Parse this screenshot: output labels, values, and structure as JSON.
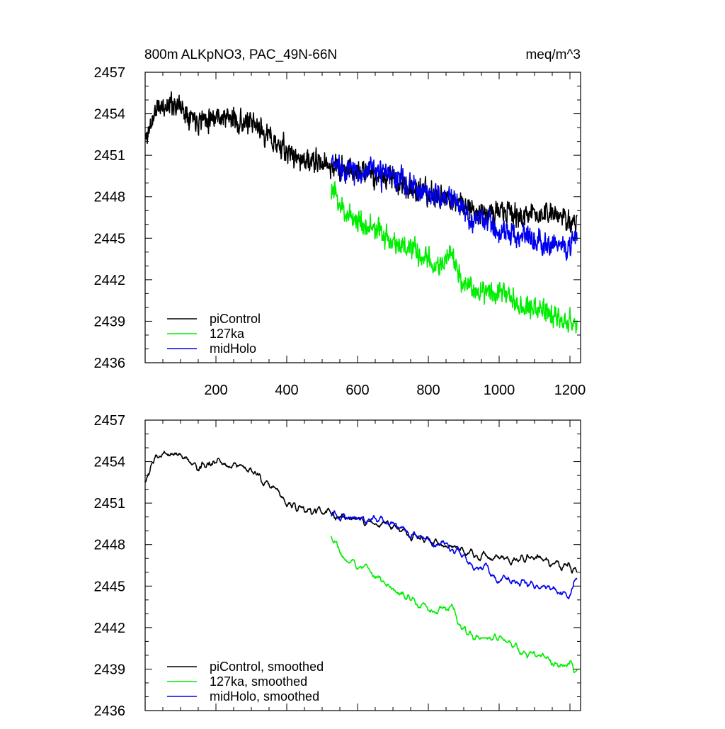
{
  "figure": {
    "title_left": "800m ALKpNO3, PAC_49N-66N",
    "title_right": "meq/m^3"
  },
  "colors": {
    "piControl": "#000000",
    "127ka": "#00ee00",
    "midHolo": "#0000ee"
  },
  "chart_data": [
    {
      "type": "line",
      "panel": "top",
      "xlim": [
        0,
        1230
      ],
      "ylim": [
        2436,
        2457
      ],
      "x_ticks": [
        200,
        400,
        600,
        800,
        1000,
        1200
      ],
      "y_ticks": [
        2436,
        2439,
        2442,
        2445,
        2448,
        2451,
        2454,
        2457
      ],
      "legend": {
        "placement": "lower-left",
        "entries": [
          "piControl",
          "127ka",
          "midHolo"
        ]
      },
      "series": [
        {
          "name": "piControl",
          "color": "#000000",
          "x_start": 1,
          "x_end": 1220,
          "trend": [
            [
              0,
              2452.0
            ],
            [
              30,
              2454.3
            ],
            [
              80,
              2454.8
            ],
            [
              150,
              2453.6
            ],
            [
              200,
              2453.9
            ],
            [
              260,
              2453.5
            ],
            [
              320,
              2453.0
            ],
            [
              400,
              2451.2
            ],
            [
              460,
              2450.5
            ],
            [
              520,
              2450.3
            ],
            [
              560,
              2450.0
            ],
            [
              600,
              2449.8
            ],
            [
              650,
              2449.6
            ],
            [
              700,
              2449.2
            ],
            [
              760,
              2448.5
            ],
            [
              820,
              2448.0
            ],
            [
              880,
              2447.7
            ],
            [
              940,
              2447.0
            ],
            [
              1000,
              2446.9
            ],
            [
              1060,
              2446.6
            ],
            [
              1100,
              2446.8
            ],
            [
              1160,
              2446.6
            ],
            [
              1220,
              2446.2
            ]
          ],
          "noise": 0.9,
          "seed": 11
        },
        {
          "name": "127ka",
          "color": "#00ee00",
          "x_start": 525,
          "x_end": 1220,
          "trend": [
            [
              525,
              2448.6
            ],
            [
              560,
              2447.0
            ],
            [
              600,
              2446.3
            ],
            [
              650,
              2445.6
            ],
            [
              700,
              2444.8
            ],
            [
              760,
              2444.0
            ],
            [
              820,
              2443.0
            ],
            [
              870,
              2443.6
            ],
            [
              900,
              2441.5
            ],
            [
              960,
              2441.2
            ],
            [
              1000,
              2441.3
            ],
            [
              1060,
              2440.3
            ],
            [
              1120,
              2439.8
            ],
            [
              1170,
              2439.2
            ],
            [
              1220,
              2438.8
            ]
          ],
          "noise": 0.9,
          "seed": 23
        },
        {
          "name": "midHolo",
          "color": "#0000ee",
          "x_start": 525,
          "x_end": 1220,
          "trend": [
            [
              525,
              2450.4
            ],
            [
              600,
              2449.8
            ],
            [
              660,
              2449.8
            ],
            [
              720,
              2449.2
            ],
            [
              780,
              2448.4
            ],
            [
              840,
              2448.0
            ],
            [
              880,
              2447.6
            ],
            [
              920,
              2446.3
            ],
            [
              960,
              2446.4
            ],
            [
              1000,
              2445.4
            ],
            [
              1060,
              2445.3
            ],
            [
              1100,
              2445.0
            ],
            [
              1160,
              2444.6
            ],
            [
              1200,
              2444.3
            ],
            [
              1220,
              2445.2
            ]
          ],
          "noise": 0.95,
          "seed": 37
        }
      ]
    },
    {
      "type": "line",
      "panel": "bottom",
      "xlim": [
        0,
        1230
      ],
      "ylim": [
        2436,
        2457
      ],
      "x_ticks": [
        200,
        400,
        600,
        800,
        1000,
        1200
      ],
      "y_ticks": [
        2436,
        2439,
        2442,
        2445,
        2448,
        2451,
        2454,
        2457
      ],
      "legend": {
        "placement": "lower-left",
        "entries": [
          "piControl, smoothed",
          "127ka, smoothed",
          "midHolo, smoothed"
        ]
      },
      "series": [
        {
          "name": "piControl, smoothed",
          "color": "#000000",
          "x_start": 1,
          "x_end": 1220,
          "trend": [
            [
              0,
              2452.2
            ],
            [
              30,
              2454.6
            ],
            [
              80,
              2454.7
            ],
            [
              150,
              2453.6
            ],
            [
              200,
              2454.0
            ],
            [
              260,
              2453.7
            ],
            [
              320,
              2453.0
            ],
            [
              400,
              2451.0
            ],
            [
              460,
              2450.5
            ],
            [
              520,
              2450.3
            ],
            [
              560,
              2450.0
            ],
            [
              600,
              2449.9
            ],
            [
              650,
              2449.6
            ],
            [
              700,
              2449.3
            ],
            [
              760,
              2448.6
            ],
            [
              820,
              2448.1
            ],
            [
              880,
              2447.8
            ],
            [
              940,
              2447.1
            ],
            [
              1000,
              2447.0
            ],
            [
              1060,
              2446.7
            ],
            [
              1100,
              2446.8
            ],
            [
              1160,
              2446.7
            ],
            [
              1220,
              2446.1
            ]
          ],
          "noise": 0.45,
          "seed": 53
        },
        {
          "name": "127ka, smoothed",
          "color": "#00ee00",
          "x_start": 525,
          "x_end": 1220,
          "trend": [
            [
              525,
              2448.6
            ],
            [
              560,
              2447.1
            ],
            [
              600,
              2446.5
            ],
            [
              650,
              2445.7
            ],
            [
              700,
              2444.8
            ],
            [
              760,
              2444.0
            ],
            [
              820,
              2443.1
            ],
            [
              870,
              2443.4
            ],
            [
              900,
              2441.7
            ],
            [
              960,
              2441.2
            ],
            [
              1000,
              2441.3
            ],
            [
              1060,
              2440.3
            ],
            [
              1120,
              2439.9
            ],
            [
              1170,
              2439.2
            ],
            [
              1220,
              2439.0
            ]
          ],
          "noise": 0.45,
          "seed": 67
        },
        {
          "name": "midHolo, smoothed",
          "color": "#0000ee",
          "x_start": 525,
          "x_end": 1220,
          "trend": [
            [
              525,
              2450.3
            ],
            [
              600,
              2449.8
            ],
            [
              660,
              2449.8
            ],
            [
              720,
              2449.3
            ],
            [
              780,
              2448.4
            ],
            [
              840,
              2448.0
            ],
            [
              880,
              2447.6
            ],
            [
              920,
              2446.5
            ],
            [
              960,
              2446.4
            ],
            [
              1000,
              2445.5
            ],
            [
              1060,
              2445.3
            ],
            [
              1100,
              2445.1
            ],
            [
              1160,
              2444.7
            ],
            [
              1200,
              2444.2
            ],
            [
              1220,
              2445.4
            ]
          ],
          "noise": 0.45,
          "seed": 79
        }
      ]
    }
  ]
}
